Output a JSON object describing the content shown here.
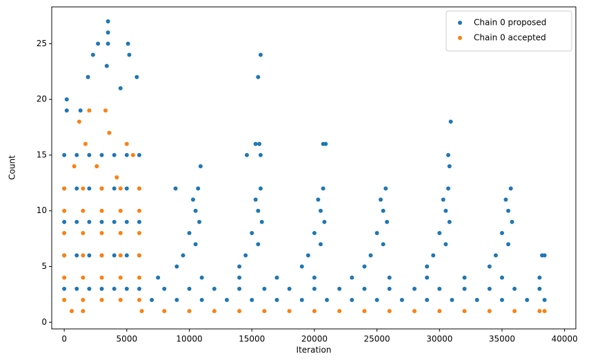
{
  "chart_data": {
    "type": "scatter",
    "xlabel": "Iteration",
    "ylabel": "Count",
    "xlim": [
      -1000,
      40900
    ],
    "ylim": [
      -0.6,
      28.3
    ],
    "xticks": [
      0,
      5000,
      10000,
      15000,
      20000,
      25000,
      30000,
      35000,
      40000
    ],
    "yticks": [
      0,
      5,
      10,
      15,
      20,
      25
    ],
    "legend": "upper right",
    "series": [
      {
        "name": "Chain 0 proposed",
        "color": "#1f77b4",
        "x": [
          0,
          0,
          0,
          0,
          0,
          1000,
          1000,
          1000,
          1000,
          1000,
          2000,
          2000,
          2000,
          2000,
          2000,
          3000,
          3000,
          3000,
          3000,
          3000,
          4000,
          4000,
          4000,
          4000,
          4000,
          5000,
          5000,
          5000,
          5000,
          5000,
          6000,
          6000,
          6000,
          6000,
          6000,
          3500,
          3500,
          3500,
          2700,
          5100,
          5200,
          2300,
          1900,
          200,
          200,
          3400,
          5800,
          1300,
          4500,
          7000,
          9000,
          11000,
          13000,
          15000,
          17000,
          19000,
          21000,
          23000,
          25000,
          27000,
          29000,
          31000,
          33000,
          35000,
          37000,
          38400,
          8000,
          10000,
          12000,
          14000,
          16000,
          18000,
          20000,
          22000,
          24000,
          26000,
          28000,
          30000,
          32000,
          34000,
          36000,
          38000,
          7500,
          11000,
          14000,
          17000,
          20000,
          23000,
          26000,
          29000,
          32000,
          35000,
          38000,
          9000,
          9500,
          10500,
          10000,
          10800,
          10500,
          10300,
          10700,
          14000,
          14500,
          15500,
          15000,
          15800,
          15500,
          15300,
          15700,
          19000,
          19500,
          20500,
          20000,
          20800,
          20500,
          20300,
          20700,
          24000,
          24500,
          25500,
          25000,
          25800,
          25500,
          25300,
          25700,
          29000,
          29500,
          30500,
          30000,
          30800,
          30500,
          30300,
          30700,
          34000,
          34500,
          35500,
          35000,
          35800,
          35500,
          35300,
          35700,
          15500,
          15700,
          15300,
          15600,
          15700,
          14600,
          20700,
          20900,
          30900,
          30700,
          10900,
          30800,
          8900,
          38200,
          38400
        ],
        "values": [
          3,
          6,
          9,
          12,
          15,
          3,
          6,
          9,
          12,
          15,
          3,
          6,
          9,
          12,
          15,
          3,
          6,
          9,
          12,
          15,
          3,
          6,
          9,
          12,
          15,
          3,
          6,
          9,
          12,
          15,
          3,
          6,
          9,
          12,
          15,
          27,
          26,
          25,
          25,
          25,
          24,
          24,
          22,
          20,
          19,
          23,
          22,
          19,
          21,
          2,
          2,
          2,
          2,
          2,
          2,
          2,
          2,
          2,
          2,
          2,
          2,
          2,
          2,
          2,
          2,
          2,
          3,
          3,
          3,
          3,
          3,
          3,
          3,
          3,
          3,
          3,
          3,
          3,
          3,
          3,
          3,
          3,
          4,
          4,
          4,
          4,
          4,
          4,
          4,
          4,
          4,
          4,
          4,
          5,
          6,
          7,
          8,
          9,
          10,
          11,
          12,
          5,
          6,
          7,
          8,
          9,
          10,
          11,
          12,
          5,
          6,
          7,
          8,
          9,
          10,
          11,
          12,
          5,
          6,
          7,
          8,
          9,
          10,
          11,
          12,
          5,
          6,
          7,
          8,
          9,
          10,
          11,
          12,
          5,
          6,
          7,
          8,
          9,
          10,
          11,
          12,
          22,
          24,
          16,
          16,
          15,
          15,
          16,
          16,
          18,
          15,
          14,
          14,
          12,
          6,
          6
        ]
      },
      {
        "name": "Chain 0 accepted",
        "color": "#ff7f0e",
        "x": [
          0,
          0,
          0,
          0,
          0,
          0,
          1500,
          1500,
          1500,
          1500,
          1500,
          1500,
          3000,
          3000,
          3000,
          3000,
          3000,
          3000,
          4500,
          4500,
          4500,
          4500,
          4500,
          4500,
          6000,
          6000,
          6000,
          6000,
          6000,
          6000,
          1200,
          2000,
          3300,
          1700,
          5000,
          3600,
          600,
          1500,
          800,
          2600,
          4200,
          5500,
          6200,
          8000,
          10000,
          12000,
          14000,
          16000,
          18000,
          20000,
          22000,
          24000,
          26000,
          28000,
          30000,
          32000,
          34000,
          36000,
          38000,
          38400
        ],
        "values": [
          2,
          4,
          6,
          8,
          10,
          12,
          2,
          4,
          6,
          8,
          10,
          12,
          2,
          4,
          6,
          8,
          10,
          12,
          2,
          4,
          6,
          8,
          10,
          12,
          2,
          4,
          6,
          8,
          10,
          12,
          18,
          19,
          19,
          16,
          16,
          17,
          1,
          1,
          14,
          14,
          13,
          15,
          1,
          1,
          1,
          1,
          1,
          1,
          1,
          1,
          1,
          1,
          1,
          1,
          1,
          1,
          1,
          1,
          1,
          1
        ]
      }
    ]
  }
}
